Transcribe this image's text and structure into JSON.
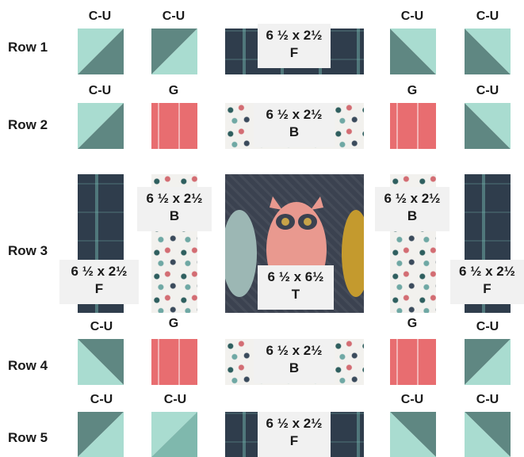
{
  "rows": [
    {
      "label": "Row 1"
    },
    {
      "label": "Row 2"
    },
    {
      "label": "Row 3"
    },
    {
      "label": "Row 4"
    },
    {
      "label": "Row 5"
    }
  ],
  "top_labels": {
    "r1": [
      "C-U",
      "C-U",
      "C-U",
      "C-U"
    ],
    "r2": [
      "C-U",
      "G",
      "G",
      "C-U"
    ],
    "r4": [
      "C-U",
      "G",
      "G",
      "C-U"
    ],
    "r5": [
      "C-U",
      "C-U",
      "C-U",
      "C-U"
    ]
  },
  "boxes": {
    "r1_center": {
      "size": "6 ½ x 2½",
      "code": "F"
    },
    "r2_center": {
      "size": "6 ½ x 2½",
      "code": "B"
    },
    "r3_left_b": {
      "size": "6 ½ x 2½",
      "code": "B"
    },
    "r3_right_b": {
      "size": "6 ½ x 2½",
      "code": "B"
    },
    "r3_left_f": {
      "size": "6 ½ x 2½",
      "code": "F"
    },
    "r3_right_f": {
      "size": "6 ½ x 2½",
      "code": "F"
    },
    "r3_center": {
      "size": "6 ½ x 6½",
      "code": "T"
    },
    "r4_center": {
      "size": "6 ½ x 2½",
      "code": "B"
    },
    "r5_center": {
      "size": "6 ½ x 2½",
      "code": "F"
    }
  },
  "colors": {
    "mint": "#a9dcd0",
    "slate_green": "#5f8782",
    "navy": "#2f3d4c",
    "coral": "#e86d70",
    "cream": "#f2f1ee"
  }
}
